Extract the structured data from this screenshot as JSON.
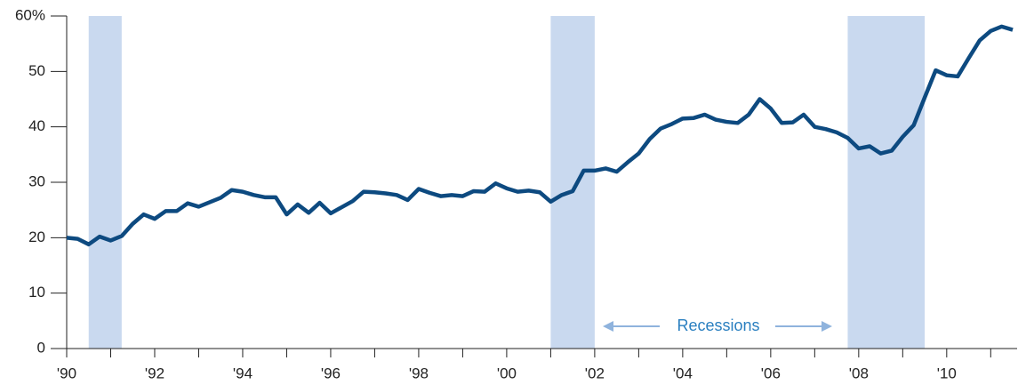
{
  "chart_data": {
    "type": "line",
    "x": [
      1990,
      1990.25,
      1990.5,
      1990.75,
      1991,
      1991.25,
      1991.5,
      1991.75,
      1992,
      1992.25,
      1992.5,
      1992.75,
      1993,
      1993.25,
      1993.5,
      1993.75,
      1994,
      1994.25,
      1994.5,
      1994.75,
      1995,
      1995.25,
      1995.5,
      1995.75,
      1996,
      1996.25,
      1996.5,
      1996.75,
      1997,
      1997.25,
      1997.5,
      1997.75,
      1998,
      1998.25,
      1998.5,
      1998.75,
      1999,
      1999.25,
      1999.5,
      1999.75,
      2000,
      2000.25,
      2000.5,
      2000.75,
      2001,
      2001.25,
      2001.5,
      2001.75,
      2002,
      2002.25,
      2002.5,
      2002.75,
      2003,
      2003.25,
      2003.5,
      2003.75,
      2004,
      2004.25,
      2004.5,
      2004.75,
      2005,
      2005.25,
      2005.5,
      2005.75,
      2006,
      2006.25,
      2006.5,
      2006.75,
      2007,
      2007.25,
      2007.5,
      2007.75,
      2008,
      2008.25,
      2008.5,
      2008.75,
      2009,
      2009.25,
      2009.5,
      2009.75,
      2010,
      2010.25,
      2010.5,
      2010.75,
      2011,
      2011.25,
      2011.5
    ],
    "series": [
      {
        "color": "#0d4a80",
        "values": [
          20,
          19.8,
          18.8,
          20.2,
          19.5,
          20.3,
          22.5,
          24.2,
          23.4,
          24.8,
          24.8,
          26.2,
          25.6,
          26.4,
          27.2,
          28.6,
          28.3,
          27.7,
          27.3,
          27.3,
          24.2,
          26.0,
          24.5,
          26.3,
          24.4,
          25.5,
          26.6,
          28.3,
          28.2,
          28.0,
          27.7,
          26.8,
          28.8,
          28.1,
          27.5,
          27.7,
          27.5,
          28.4,
          28.3,
          29.8,
          28.9,
          28.3,
          28.5,
          28.2,
          26.5,
          27.7,
          28.4,
          32.1,
          32.1,
          32.5,
          31.9,
          33.6,
          35.2,
          37.8,
          39.7,
          40.5,
          41.5,
          41.6,
          42.2,
          41.3,
          40.9,
          40.7,
          42.2,
          45.0,
          43.3,
          40.7,
          40.8,
          42.2,
          40.0,
          39.6,
          39.0,
          38.0,
          36.1,
          36.5,
          35.2,
          35.7,
          38.2,
          40.3,
          45.3,
          50.2,
          49.3,
          49.1,
          52.4,
          55.6,
          57.3,
          58.1,
          57.5
        ]
      }
    ],
    "xlim": [
      1990,
      2011.6
    ],
    "xticks": [
      {
        "value": 1990,
        "label": "'90"
      },
      {
        "value": 1992,
        "label": "'92"
      },
      {
        "value": 1994,
        "label": "'94"
      },
      {
        "value": 1996,
        "label": "'96"
      },
      {
        "value": 1998,
        "label": "'98"
      },
      {
        "value": 2000,
        "label": "'00"
      },
      {
        "value": 2002,
        "label": "'02"
      },
      {
        "value": 2004,
        "label": "'04"
      },
      {
        "value": 2006,
        "label": "'06"
      },
      {
        "value": 2008,
        "label": "'08"
      },
      {
        "value": 2010,
        "label": "'10"
      }
    ],
    "xminor_ticks": [
      1991,
      1993,
      1995,
      1997,
      1999,
      2001,
      2003,
      2005,
      2007,
      2009,
      2011
    ],
    "ylim": [
      0,
      60
    ],
    "yticks": [
      0,
      10,
      20,
      30,
      40,
      50,
      {
        "value": 60,
        "label": "60%"
      }
    ],
    "recessions": {
      "color": "#c9d9ef",
      "spans": [
        [
          1990.5,
          1991.25
        ],
        [
          2001,
          2002
        ],
        [
          2007.75,
          2009.5
        ]
      ]
    },
    "annotation": "Recessions"
  }
}
